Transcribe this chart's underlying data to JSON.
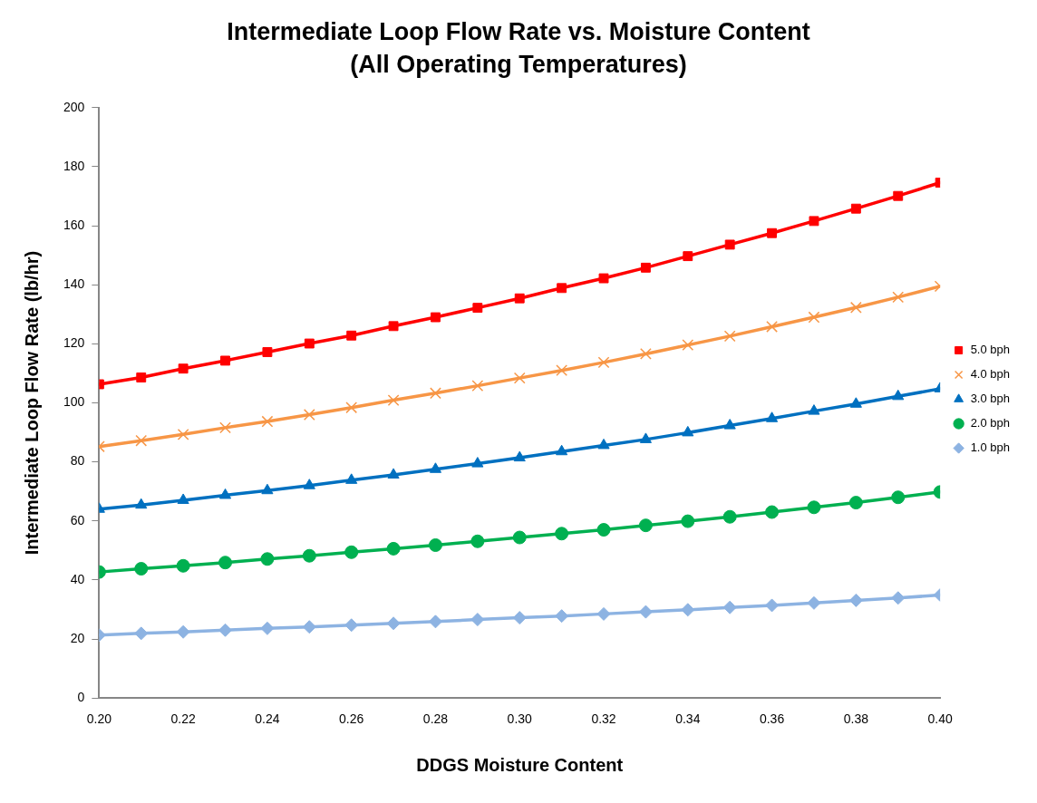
{
  "chart_data": {
    "type": "line",
    "title": "Intermediate Loop Flow Rate vs. Moisture Content",
    "subtitle": "(All Operating Temperatures)",
    "xlabel": "DDGS Moisture Content",
    "ylabel": "Intermediate Loop Flow Rate (lb/hr)",
    "x": [
      0.2,
      0.21,
      0.22,
      0.23,
      0.24,
      0.25,
      0.26,
      0.27,
      0.28,
      0.29,
      0.3,
      0.31,
      0.32,
      0.33,
      0.34,
      0.35,
      0.36,
      0.37,
      0.38,
      0.39,
      0.4
    ],
    "series": [
      {
        "name": "5.0 bph",
        "color": "#ff0000",
        "marker": "square",
        "values": [
          106.3,
          108.6,
          111.6,
          114.3,
          117.2,
          120.1,
          122.8,
          126,
          129,
          132.2,
          135.4,
          138.9,
          142.2,
          145.8,
          149.7,
          153.6,
          157.5,
          161.6,
          165.8,
          170.1,
          174.6
        ]
      },
      {
        "name": "4.0 bph",
        "color": "#f79646",
        "marker": "cross",
        "values": [
          85.2,
          87.2,
          89.3,
          91.6,
          93.7,
          96,
          98.4,
          100.9,
          103.3,
          105.8,
          108.4,
          111,
          113.7,
          116.6,
          119.6,
          122.6,
          125.8,
          129,
          132.3,
          135.8,
          139.5
        ]
      },
      {
        "name": "3.0 bph",
        "color": "#0070c0",
        "marker": "triangle",
        "values": [
          64,
          65.4,
          67,
          68.7,
          70.3,
          72,
          73.8,
          75.6,
          77.5,
          79.4,
          81.4,
          83.5,
          85.6,
          87.6,
          89.9,
          92.3,
          94.7,
          97.2,
          99.6,
          102.2,
          104.8
        ]
      },
      {
        "name": "2.0 bph",
        "color": "#00b050",
        "marker": "circle",
        "values": [
          42.7,
          43.8,
          44.8,
          45.9,
          47.1,
          48.2,
          49.4,
          50.6,
          51.8,
          53.1,
          54.4,
          55.7,
          57,
          58.5,
          59.9,
          61.4,
          63,
          64.6,
          66.2,
          68,
          69.8
        ]
      },
      {
        "name": "1.0 bph",
        "color": "#8db3e2",
        "marker": "diamond",
        "values": [
          21.3,
          21.9,
          22.4,
          23,
          23.6,
          24.1,
          24.7,
          25.3,
          25.9,
          26.6,
          27.2,
          27.8,
          28.5,
          29.2,
          29.9,
          30.7,
          31.4,
          32.2,
          33.1,
          33.9,
          34.9
        ]
      }
    ],
    "xlim": [
      0.2,
      0.4
    ],
    "xticks": [
      {
        "value": 0.2,
        "label": "0.20"
      },
      {
        "value": 0.22,
        "label": "0.22"
      },
      {
        "value": 0.24,
        "label": "0.24"
      },
      {
        "value": 0.26,
        "label": "0.26"
      },
      {
        "value": 0.28,
        "label": "0.28"
      },
      {
        "value": 0.3,
        "label": "0.30"
      },
      {
        "value": 0.32,
        "label": "0.32"
      },
      {
        "value": 0.34,
        "label": "0.34"
      },
      {
        "value": 0.36,
        "label": "0.36"
      },
      {
        "value": 0.38,
        "label": "0.38"
      },
      {
        "value": 0.4,
        "label": "0.40"
      }
    ],
    "ylim": [
      0,
      200
    ],
    "yticks": [
      0,
      20,
      40,
      60,
      80,
      100,
      120,
      140,
      160,
      180,
      200
    ],
    "legend": "right",
    "line_style": "solid"
  }
}
